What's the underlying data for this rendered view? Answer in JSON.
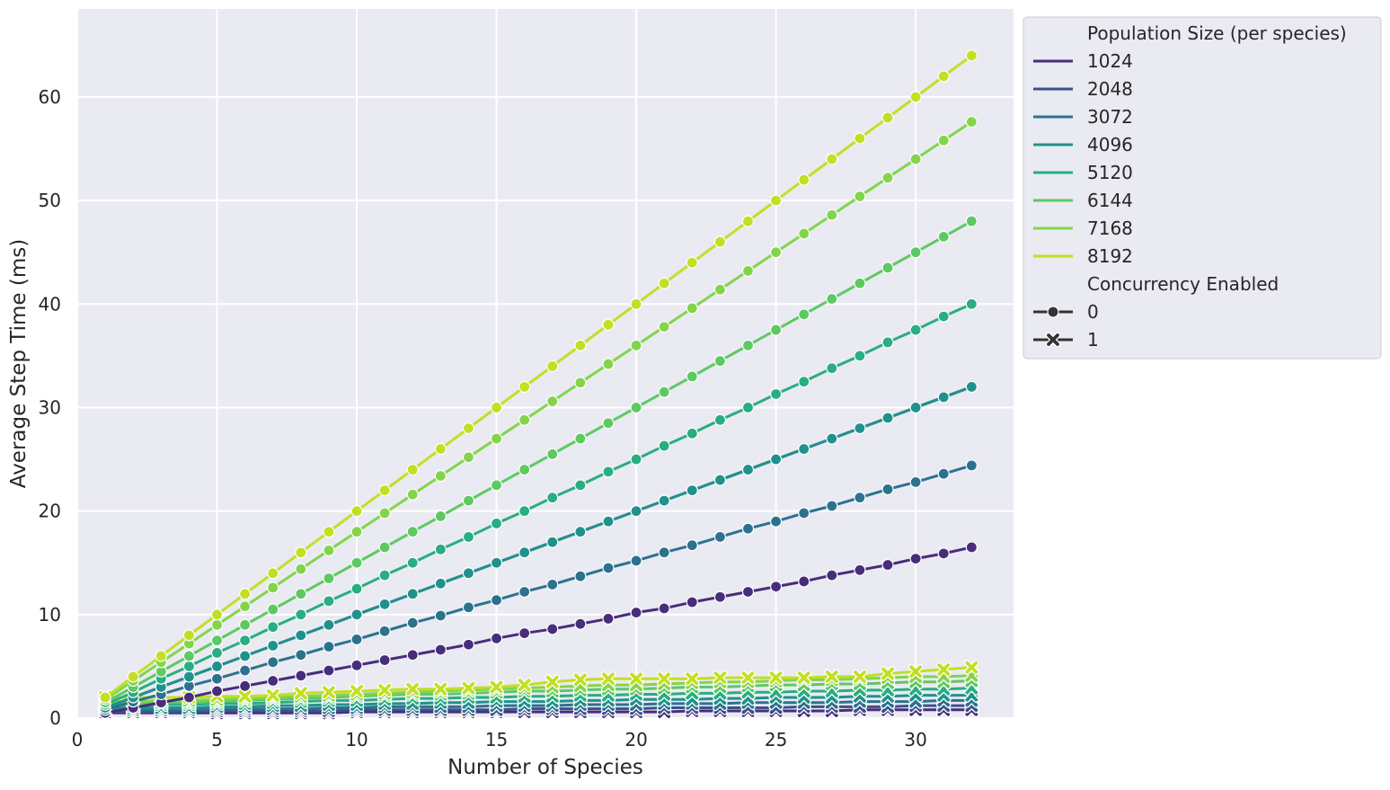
{
  "chart_data": {
    "type": "line",
    "title": "",
    "xlabel": "Number of Species",
    "ylabel": "Average Step Time (ms)",
    "xlim": [
      0,
      33.5
    ],
    "ylim": [
      0,
      68.5
    ],
    "xticks": [
      0,
      5,
      10,
      15,
      20,
      25,
      30
    ],
    "yticks": [
      0,
      10,
      20,
      30,
      40,
      50,
      60
    ],
    "grid": true,
    "background": "#eaeaf2",
    "legend_position": "outside-right-top",
    "legend": {
      "hue_title": "Population Size (per species)",
      "style_title": "Concurrency Enabled",
      "style_entries": [
        {
          "label": "0",
          "marker": "circle"
        },
        {
          "label": "1",
          "marker": "x"
        }
      ]
    },
    "x": [
      1,
      2,
      3,
      4,
      5,
      6,
      7,
      8,
      9,
      10,
      11,
      12,
      13,
      14,
      15,
      16,
      17,
      18,
      19,
      20,
      21,
      22,
      23,
      24,
      25,
      26,
      27,
      28,
      29,
      30,
      31,
      32
    ],
    "series": [
      {
        "name": "1024",
        "color": "#472d7b",
        "concurrency": "0",
        "values": [
          0.5,
          1.0,
          1.5,
          2.0,
          2.6,
          3.1,
          3.6,
          4.1,
          4.6,
          5.1,
          5.6,
          6.1,
          6.6,
          7.1,
          7.7,
          8.2,
          8.6,
          9.1,
          9.6,
          10.2,
          10.6,
          11.2,
          11.7,
          12.2,
          12.7,
          13.2,
          13.8,
          14.3,
          14.8,
          15.4,
          15.9,
          16.5
        ]
      },
      {
        "name": "1024",
        "color": "#472d7b",
        "concurrency": "1",
        "values": [
          0.5,
          0.5,
          0.5,
          0.5,
          0.5,
          0.5,
          0.5,
          0.5,
          0.5,
          0.6,
          0.6,
          0.6,
          0.6,
          0.6,
          0.6,
          0.6,
          0.6,
          0.6,
          0.6,
          0.6,
          0.6,
          0.7,
          0.7,
          0.7,
          0.7,
          0.7,
          0.7,
          0.8,
          0.8,
          0.8,
          0.8,
          0.8
        ]
      },
      {
        "name": "2048",
        "color": "#3b528b",
        "concurrency": "0",
        "values": [
          1.0,
          2.0,
          3.0,
          4.0,
          5.0,
          6.0,
          7.0,
          8.0,
          9.0,
          10.0,
          11.0,
          12.0,
          13.0,
          14.0,
          15.0,
          16.0,
          17.0,
          18.0,
          19.0,
          20.0,
          21.0,
          22.0,
          23.0,
          24.0,
          25.0,
          26.0,
          27.0,
          28.0,
          29.0,
          30.0,
          31.0,
          32.0
        ]
      },
      {
        "name": "2048",
        "color": "#3b528b",
        "concurrency": "1",
        "values": [
          0.6,
          0.6,
          0.6,
          0.6,
          0.7,
          0.7,
          0.7,
          0.7,
          0.7,
          0.8,
          0.8,
          0.8,
          0.8,
          0.8,
          0.8,
          0.9,
          0.9,
          0.9,
          0.9,
          0.9,
          1.0,
          1.0,
          1.0,
          1.0,
          1.0,
          1.1,
          1.1,
          1.1,
          1.1,
          1.2,
          1.2,
          1.2
        ]
      },
      {
        "name": "3072",
        "color": "#2c728e",
        "concurrency": "0",
        "values": [
          0.8,
          1.6,
          2.3,
          3.1,
          3.8,
          4.6,
          5.4,
          6.1,
          6.9,
          7.6,
          8.4,
          9.2,
          9.9,
          10.7,
          11.4,
          12.2,
          12.9,
          13.7,
          14.5,
          15.2,
          16.0,
          16.7,
          17.5,
          18.3,
          19.0,
          19.8,
          20.5,
          21.3,
          22.1,
          22.8,
          23.6,
          24.4
        ]
      },
      {
        "name": "3072",
        "color": "#2c728e",
        "concurrency": "1",
        "values": [
          0.8,
          0.8,
          0.8,
          0.8,
          0.9,
          0.9,
          0.9,
          0.9,
          1.0,
          1.0,
          1.1,
          1.1,
          1.1,
          1.1,
          1.2,
          1.2,
          1.2,
          1.3,
          1.3,
          1.3,
          1.4,
          1.4,
          1.4,
          1.5,
          1.5,
          1.5,
          1.5,
          1.6,
          1.6,
          1.6,
          1.7,
          1.7
        ]
      },
      {
        "name": "4096",
        "color": "#21918c",
        "concurrency": "0",
        "values": [
          1.0,
          2.0,
          3.0,
          4.0,
          5.0,
          6.0,
          7.0,
          8.0,
          9.0,
          10.0,
          11.0,
          12.0,
          13.0,
          14.0,
          15.0,
          16.0,
          17.0,
          18.0,
          19.0,
          20.0,
          21.0,
          22.0,
          23.0,
          24.0,
          25.0,
          26.0,
          27.0,
          28.0,
          29.0,
          30.0,
          31.0,
          32.0
        ]
      },
      {
        "name": "4096",
        "color": "#21918c",
        "concurrency": "1",
        "values": [
          1.0,
          1.0,
          1.0,
          1.0,
          1.1,
          1.1,
          1.2,
          1.2,
          1.3,
          1.3,
          1.4,
          1.4,
          1.5,
          1.5,
          1.6,
          1.6,
          1.6,
          1.7,
          1.7,
          1.8,
          1.8,
          1.8,
          1.9,
          1.9,
          2.0,
          2.0,
          2.0,
          2.1,
          2.1,
          2.2,
          2.2,
          2.2
        ]
      },
      {
        "name": "5120",
        "color": "#28ae80",
        "concurrency": "0",
        "values": [
          1.3,
          2.5,
          3.8,
          5.0,
          6.3,
          7.5,
          8.8,
          10.0,
          11.3,
          12.5,
          13.8,
          15.0,
          16.3,
          17.5,
          18.8,
          20.0,
          21.3,
          22.5,
          23.8,
          25.0,
          26.3,
          27.5,
          28.8,
          30.0,
          31.3,
          32.5,
          33.8,
          35.0,
          36.3,
          37.5,
          38.8,
          40.0
        ]
      },
      {
        "name": "5120",
        "color": "#28ae80",
        "concurrency": "1",
        "values": [
          1.2,
          1.2,
          1.3,
          1.3,
          1.4,
          1.4,
          1.5,
          1.6,
          1.7,
          1.7,
          1.8,
          1.9,
          1.9,
          2.0,
          2.0,
          2.1,
          2.1,
          2.2,
          2.2,
          2.3,
          2.3,
          2.4,
          2.4,
          2.5,
          2.5,
          2.6,
          2.6,
          2.7,
          2.7,
          2.8,
          2.8,
          2.9
        ]
      },
      {
        "name": "6144",
        "color": "#5ec962",
        "concurrency": "0",
        "values": [
          1.5,
          3.0,
          4.5,
          6.0,
          7.5,
          9.0,
          10.5,
          12.0,
          13.5,
          15.0,
          16.5,
          18.0,
          19.5,
          21.0,
          22.5,
          24.0,
          25.5,
          27.0,
          28.5,
          30.0,
          31.5,
          33.0,
          34.5,
          36.0,
          37.5,
          39.0,
          40.5,
          42.0,
          43.5,
          45.0,
          46.5,
          48.0
        ]
      },
      {
        "name": "6144",
        "color": "#5ec962",
        "concurrency": "1",
        "values": [
          1.4,
          1.4,
          1.5,
          1.5,
          1.6,
          1.7,
          1.8,
          1.9,
          2.0,
          2.1,
          2.2,
          2.3,
          2.3,
          2.4,
          2.5,
          2.6,
          2.6,
          2.7,
          2.8,
          2.8,
          2.9,
          3.0,
          3.0,
          3.1,
          3.2,
          3.2,
          3.3,
          3.3,
          3.4,
          3.5,
          3.5,
          3.6
        ]
      },
      {
        "name": "7168",
        "color": "#84d44b",
        "concurrency": "0",
        "values": [
          1.8,
          3.6,
          5.4,
          7.2,
          9.0,
          10.8,
          12.6,
          14.4,
          16.2,
          18.0,
          19.8,
          21.6,
          23.4,
          25.2,
          27.0,
          28.8,
          30.6,
          32.4,
          34.2,
          36.0,
          37.8,
          39.6,
          41.4,
          43.2,
          45.0,
          46.8,
          48.6,
          50.4,
          52.2,
          54.0,
          55.8,
          57.6
        ]
      },
      {
        "name": "7168",
        "color": "#84d44b",
        "concurrency": "1",
        "values": [
          1.6,
          1.6,
          1.7,
          1.7,
          1.8,
          1.9,
          2.0,
          2.1,
          2.2,
          2.3,
          2.4,
          2.5,
          2.6,
          2.7,
          2.8,
          2.9,
          3.0,
          3.1,
          3.2,
          3.2,
          3.3,
          3.4,
          3.5,
          3.5,
          3.6,
          3.7,
          3.7,
          3.8,
          3.9,
          4.0,
          4.0,
          4.1
        ]
      },
      {
        "name": "8192",
        "color": "#c2df23",
        "concurrency": "0",
        "values": [
          2.0,
          4.0,
          6.0,
          8.0,
          10.0,
          12.0,
          14.0,
          16.0,
          18.0,
          20.0,
          22.0,
          24.0,
          26.0,
          28.0,
          30.0,
          32.0,
          34.0,
          36.0,
          38.0,
          40.0,
          42.0,
          44.0,
          46.0,
          48.0,
          50.0,
          52.0,
          54.0,
          56.0,
          58.0,
          60.0,
          62.0,
          64.0
        ]
      },
      {
        "name": "8192",
        "color": "#c2df23",
        "concurrency": "1",
        "values": [
          2.0,
          2.0,
          2.0,
          2.0,
          2.1,
          2.1,
          2.2,
          2.4,
          2.5,
          2.6,
          2.7,
          2.8,
          2.8,
          2.9,
          3.0,
          3.2,
          3.5,
          3.7,
          3.8,
          3.8,
          3.8,
          3.8,
          3.9,
          3.9,
          3.9,
          3.9,
          4.0,
          4.0,
          4.3,
          4.5,
          4.7,
          4.9
        ]
      }
    ]
  }
}
